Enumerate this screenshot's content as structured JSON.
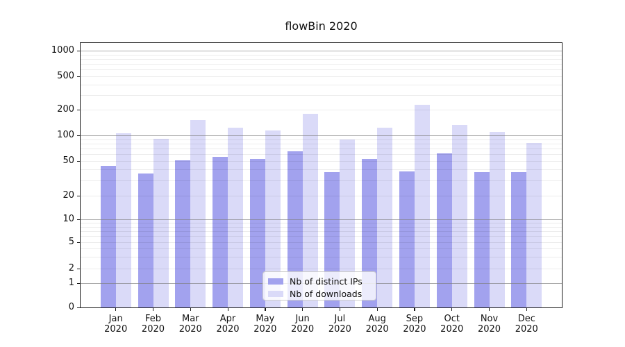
{
  "title": "flowBin 2020",
  "chart_data": {
    "type": "bar",
    "title": "flowBin 2020",
    "categories": [
      "Jan 2020",
      "Feb 2020",
      "Mar 2020",
      "Apr 2020",
      "May 2020",
      "Jun 2020",
      "Jul 2020",
      "Aug 2020",
      "Sep 2020",
      "Oct 2020",
      "Nov 2020",
      "Dec 2020"
    ],
    "series": [
      {
        "name": "Nb of distinct IPs",
        "color": "#a2a2ee",
        "values": [
          44,
          36,
          51,
          56,
          53,
          65,
          37,
          53,
          38,
          62,
          37,
          37
        ]
      },
      {
        "name": "Nb of downloads",
        "color": "#dadaf8",
        "values": [
          105,
          92,
          150,
          122,
          115,
          178,
          90,
          122,
          230,
          132,
          110,
          82
        ]
      }
    ],
    "xlabel": "",
    "ylabel": "",
    "y_scale": "symlog",
    "y_ticks": [
      0,
      1,
      2,
      5,
      10,
      20,
      50,
      100,
      200,
      500,
      1000
    ],
    "ylim": [
      0,
      1250
    ],
    "grid": true,
    "legend_position": "lower center"
  }
}
